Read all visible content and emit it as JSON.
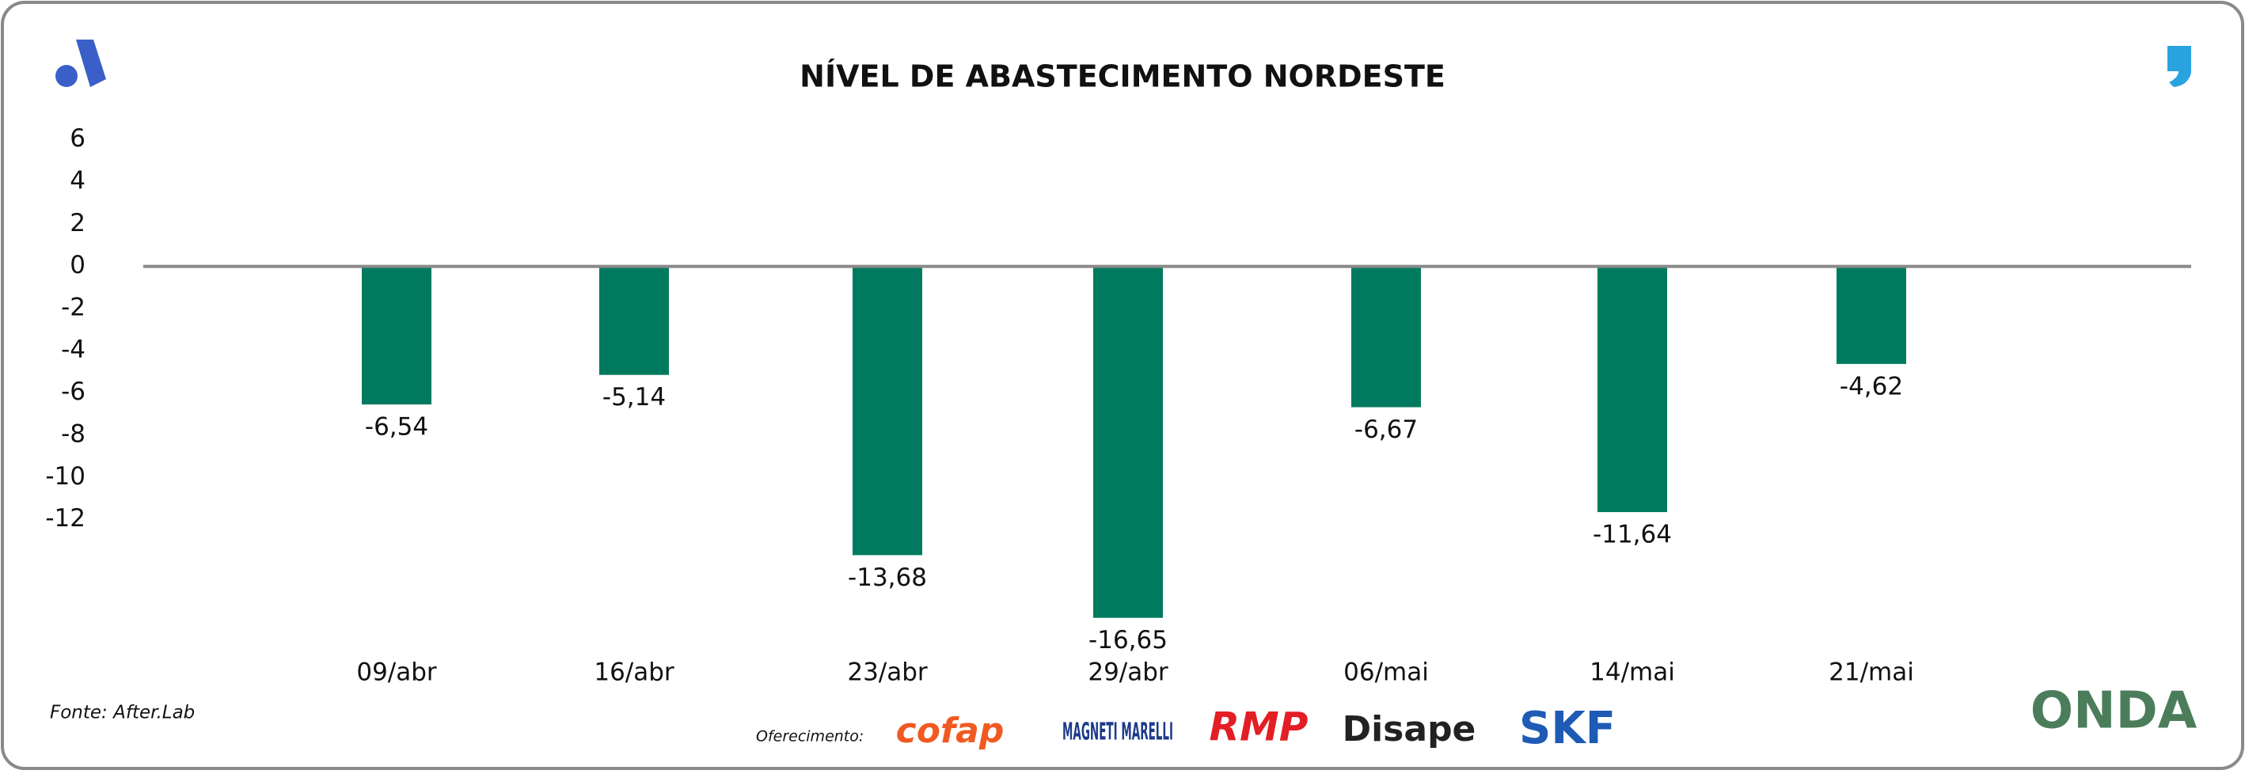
{
  "chart_data": {
    "type": "bar",
    "title": "NÍVEL DE ABASTECIMENTO NORDESTE",
    "categories": [
      "09/abr",
      "16/abr",
      "23/abr",
      "29/abr",
      "06/mai",
      "14/mai",
      "21/mai"
    ],
    "values": [
      -6.54,
      -5.14,
      -13.68,
      -16.65,
      -6.67,
      -11.64,
      -4.62
    ],
    "value_labels": [
      "-6,54",
      "-5,14",
      "-13,68",
      "-16,65",
      "-6,67",
      "-11,64",
      "-4,62"
    ],
    "color": "#007a5e",
    "ylim": [
      -17,
      7
    ],
    "yticks": [
      6,
      4,
      2,
      0,
      -2,
      -4,
      -6,
      -8,
      -10,
      -12
    ],
    "grid": false
  },
  "source": "Fonte: After.Lab",
  "sponsors_label": "Oferecimento:",
  "sponsors": [
    "cofap",
    "MAGNETI MARELLI",
    "RMP",
    "Disape",
    "SKF"
  ],
  "brand": "ONDA"
}
